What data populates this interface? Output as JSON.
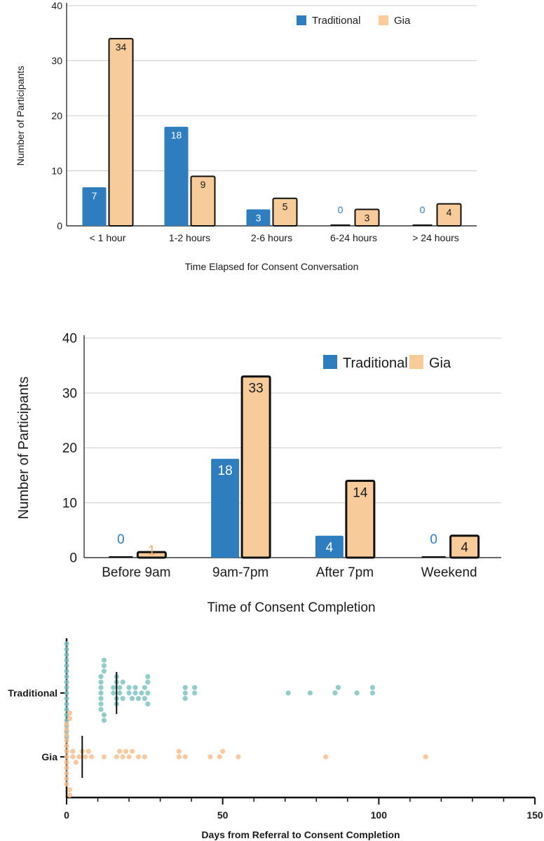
{
  "colors": {
    "traditional": "#2e7dbf",
    "gia": "#f8cb9b",
    "bar_outline": "#111111",
    "zero_traditional": "#2e7dbf",
    "zero_gia": "#f0a868",
    "dot_traditional": "#7fc4c1",
    "dot_gia": "#f9c08f",
    "grid": "#cccccc",
    "axis": "#111111",
    "text": "#1a1a1a"
  },
  "chart_data": [
    {
      "type": "bar",
      "title": "",
      "xlabel": "Time Elapsed for Consent Conversation",
      "ylabel": "Number of Participants",
      "ylim": [
        0,
        40
      ],
      "yticks": [
        "0",
        "10",
        "20",
        "30",
        "40"
      ],
      "categories": [
        "< 1 hour",
        "1-2 hours",
        "2-6 hours",
        "6-24 hours",
        "> 24 hours"
      ],
      "series": [
        {
          "name": "Traditional",
          "values": [
            7,
            18,
            3,
            0,
            0
          ],
          "labels": [
            "7",
            "18",
            "3",
            "0",
            "0"
          ]
        },
        {
          "name": "Gia",
          "values": [
            34,
            9,
            5,
            3,
            4
          ],
          "labels": [
            "34",
            "9",
            "5",
            "3",
            "4"
          ]
        }
      ],
      "legend": {
        "position": "top-right",
        "entries": [
          "Traditional",
          "Gia"
        ]
      },
      "grid": true
    },
    {
      "type": "bar",
      "title": "",
      "xlabel": "Time of Consent Completion",
      "ylabel": "Number of Participants",
      "ylim": [
        0,
        40
      ],
      "yticks": [
        "0",
        "10",
        "20",
        "30",
        "40"
      ],
      "categories": [
        "Before 9am",
        "9am-7pm",
        "After 7pm",
        "Weekend"
      ],
      "series": [
        {
          "name": "Traditional",
          "values": [
            0,
            18,
            4,
            0
          ],
          "labels": [
            "0",
            "18",
            "4",
            "0"
          ]
        },
        {
          "name": "Gia",
          "values": [
            1,
            33,
            14,
            4
          ],
          "labels": [
            "1",
            "33",
            "14",
            "4"
          ]
        }
      ],
      "legend": {
        "position": "top-right",
        "entries": [
          "Traditional",
          "Gia"
        ]
      },
      "grid": true
    },
    {
      "type": "scatter",
      "title": "",
      "xlabel": "Days from Referral to Consent Completion",
      "ylabel": "",
      "xlim": [
        0,
        150
      ],
      "xticks": [
        "0",
        "50",
        "100",
        "150"
      ],
      "categories": [
        "Traditional",
        "Gia"
      ],
      "series": [
        {
          "name": "Traditional",
          "median": 16,
          "values": [
            0,
            0,
            0,
            0,
            0,
            0,
            0,
            0,
            0,
            0,
            0,
            0,
            0,
            0,
            0,
            0,
            0,
            0,
            11,
            11,
            11,
            11,
            11,
            11,
            11,
            12,
            12,
            12,
            12,
            12,
            15,
            15,
            16,
            16,
            16,
            16,
            17,
            17,
            18,
            18,
            20,
            20,
            21,
            22,
            22,
            23,
            24,
            25,
            25,
            26,
            26,
            26,
            26,
            38,
            38,
            38,
            41,
            41,
            71,
            78,
            86,
            87,
            93,
            98,
            98
          ]
        },
        {
          "name": "Gia",
          "median": 5,
          "values": [
            0,
            0,
            0,
            0,
            0,
            0,
            0,
            0,
            0,
            0,
            0,
            0,
            1,
            1,
            1,
            1,
            2,
            2,
            3,
            4,
            5,
            6,
            7,
            8,
            12,
            16,
            17,
            18,
            19,
            20,
            21,
            23,
            25,
            36,
            36,
            38,
            46,
            49,
            50,
            55,
            83,
            115
          ]
        }
      ],
      "grid": false
    }
  ]
}
